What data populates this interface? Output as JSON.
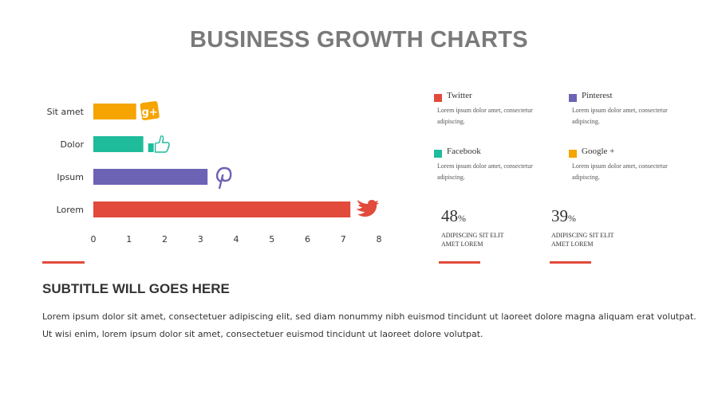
{
  "title": "BUSINESS GROWTH CHARTS",
  "chart_data": {
    "type": "bar",
    "orientation": "horizontal",
    "categories": [
      "Sit amet",
      "Dolor",
      "Ipsum",
      "Lorem"
    ],
    "values": [
      1.2,
      1.4,
      3.2,
      7.2
    ],
    "colors": [
      "#f6a400",
      "#1fbc9c",
      "#6d63b4",
      "#e24a3b"
    ],
    "icons": [
      "google-plus-icon",
      "thumbs-up-icon",
      "pinterest-icon",
      "twitter-bird-icon"
    ],
    "xticks": [
      "0",
      "1",
      "2",
      "3",
      "4",
      "5",
      "6",
      "7",
      "8"
    ],
    "xlim": [
      0,
      8
    ],
    "grid": false
  },
  "legend": [
    {
      "name": "Twitter",
      "color": "#e24a3b",
      "desc": "Lorem ipsum dolor amet, consectetur adipiscing."
    },
    {
      "name": "Pinterest",
      "color": "#6d63b4",
      "desc": "Lorem ipsum dolor amet, consectetur adipiscing."
    },
    {
      "name": "Facebook",
      "color": "#1fbc9c",
      "desc": "Lorem ipsum dolor amet, consectetur adipiscing."
    },
    {
      "name": "Google +",
      "color": "#f6a400",
      "desc": "Lorem ipsum dolor amet, consectetur adipiscing."
    }
  ],
  "stats": [
    {
      "value": "48",
      "unit": "%",
      "label": "ADIPISCING SIT ELIT AMET LOREM"
    },
    {
      "value": "39",
      "unit": "%",
      "label": "ADIPISCING SIT ELIT AMET LOREM"
    }
  ],
  "subtitle": "SUBTITLE WILL GOES HERE",
  "body": [
    "Lorem ipsum dolor sit amet, consectetuer adipiscing elit, sed diam nonummy nibh euismod tincidunt ut laoreet dolore magna aliquam erat volutpat.",
    "Ut wisi enim, lorem ipsum dolor sit amet, consectetuer euismod tincidunt ut laoreet dolore volutpat."
  ],
  "accent_color": "#e24a3b"
}
